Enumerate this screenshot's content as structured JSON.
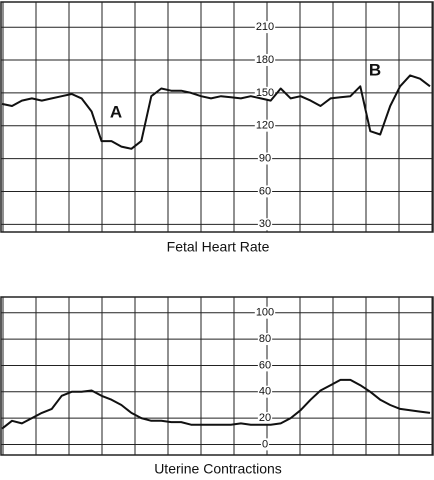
{
  "chart_data": [
    {
      "type": "line",
      "title": "Fetal Heart Rate",
      "color": "#111",
      "values": [
        140,
        138,
        143,
        145,
        143,
        145,
        147,
        149,
        145,
        133,
        106,
        106,
        101,
        99,
        106,
        147,
        154,
        152,
        152,
        150,
        147,
        145,
        147,
        146,
        145,
        147,
        145,
        143,
        154,
        145,
        147,
        143,
        138,
        145,
        146,
        147,
        156,
        115,
        112,
        138,
        156,
        166,
        163,
        156
      ],
      "ylim": [
        23,
        233
      ],
      "yticks": [
        30,
        60,
        90,
        120,
        150,
        180,
        210
      ],
      "grid": true,
      "annotations": [
        "A",
        "B"
      ]
    },
    {
      "type": "line",
      "title": "Uterine Contractions",
      "color": "#111",
      "values": [
        12,
        18,
        16,
        20,
        24,
        27,
        37,
        40,
        40,
        41,
        37,
        34,
        30,
        24,
        20,
        18,
        18,
        17,
        17,
        15,
        15,
        15,
        15,
        15,
        16,
        15,
        15,
        15,
        16,
        20,
        26,
        34,
        41,
        45,
        49,
        49,
        45,
        40,
        34,
        30,
        27,
        26,
        25,
        24
      ],
      "ylim": [
        -8,
        112
      ],
      "yticks": [
        0,
        20,
        40,
        60,
        80,
        100
      ],
      "grid": true
    }
  ]
}
